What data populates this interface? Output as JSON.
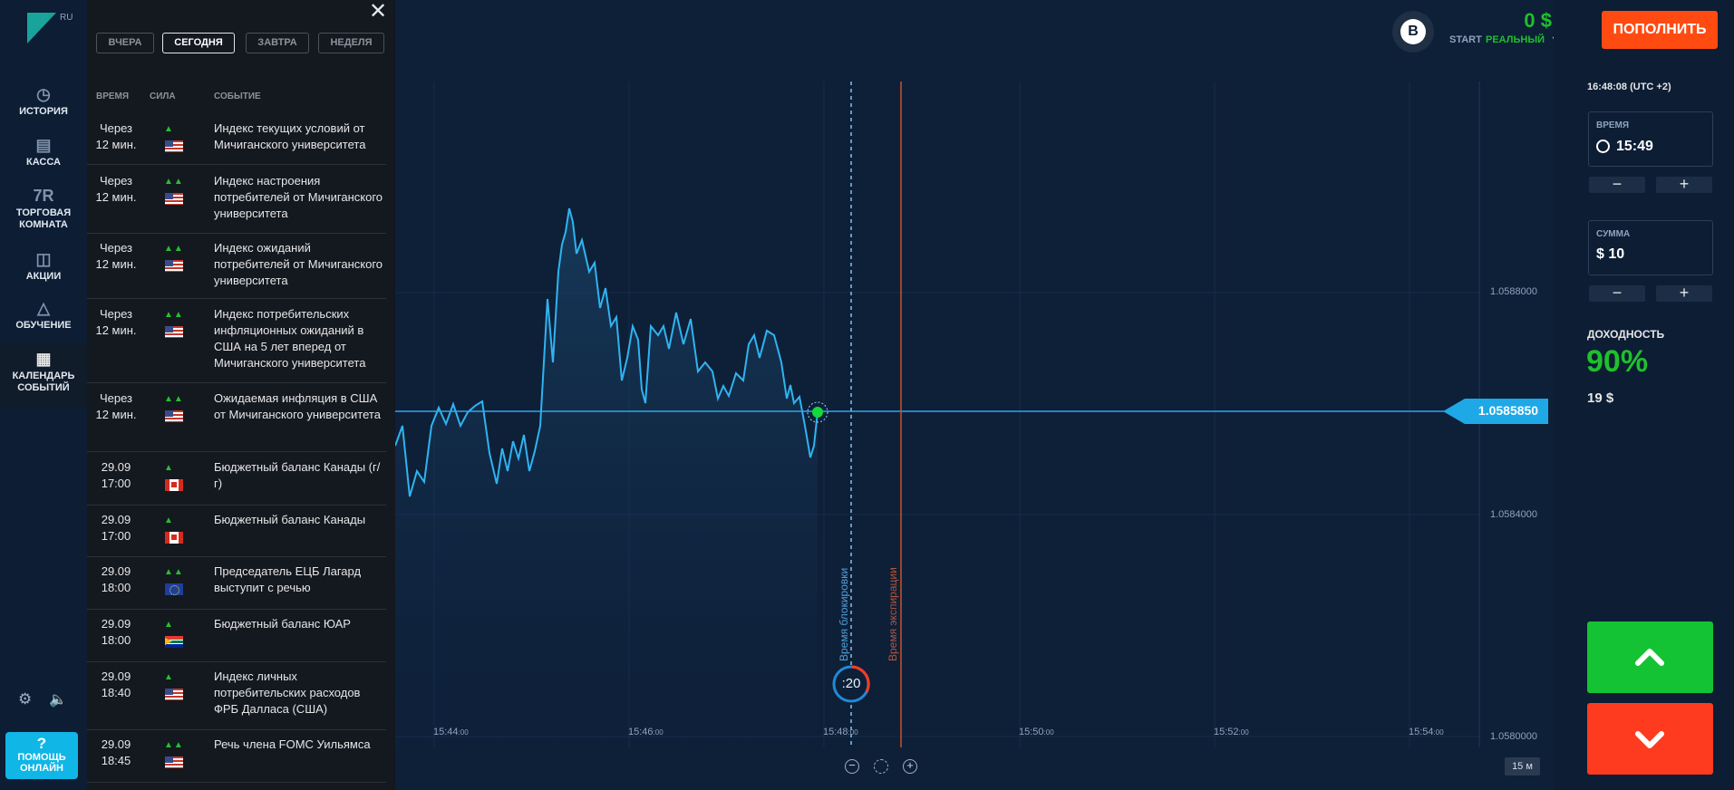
{
  "sidebar": {
    "logo_badge": "RU",
    "items": [
      {
        "label": "ИСТОРИЯ",
        "icon": "clock-history-icon"
      },
      {
        "label": "КАССА",
        "icon": "wallet-icon"
      },
      {
        "label": "ТОРГОВАЯ КОМНАТА",
        "icon": "trading-room-icon",
        "icon_text": "7R"
      },
      {
        "label": "АКЦИИ",
        "icon": "gift-icon"
      },
      {
        "label": "ОБУЧЕНИЕ",
        "icon": "graduation-cap-icon"
      },
      {
        "label": "КАЛЕНДАРЬ СОБЫТИЙ",
        "icon": "calendar-icon"
      }
    ],
    "settings_icon": "gear-icon",
    "sound_icon": "speaker-icon",
    "help": {
      "q": "?",
      "label": "ПОМОЩЬ ОНЛАЙН"
    }
  },
  "calendar": {
    "tabs": [
      "ВЧЕРА",
      "СЕГОДНЯ",
      "ЗАВТРА",
      "НЕДЕЛЯ"
    ],
    "selected_tab": "СЕГОДНЯ",
    "columns": [
      "ВРЕМЯ",
      "СИЛА",
      "СОБЫТИЕ"
    ],
    "events": [
      {
        "time": "Через 12 мин.",
        "strength": 1,
        "flag": "us",
        "name": "Индекс текущих условий от Мичиганского университета"
      },
      {
        "time": "Через 12 мин.",
        "strength": 2,
        "flag": "us",
        "name": "Индекс настроения потребителей от Мичиганского университета"
      },
      {
        "time": "Через 12 мин.",
        "strength": 2,
        "flag": "us",
        "name": "Индекс ожиданий потребителей от Мичиганского университета"
      },
      {
        "time": "Через 12 мин.",
        "strength": 2,
        "flag": "us",
        "name": "Индекс потребительских инфляционных ожиданий в США на 5 лет вперед от Мичиганского университета"
      },
      {
        "time": "Через 12 мин.",
        "strength": 2,
        "flag": "us",
        "name": "Ожидаемая инфляция в США от Мичиганского университета"
      },
      {
        "time": "29.09 17:00",
        "strength": 1,
        "flag": "ca",
        "name": "Бюджетный баланс Канады (г/г)"
      },
      {
        "time": "29.09 17:00",
        "strength": 1,
        "flag": "ca",
        "name": "Бюджетный баланс Канады"
      },
      {
        "time": "29.09 18:00",
        "strength": 2,
        "flag": "eu",
        "name": "Председатель ЕЦБ Лагард выступит с речью"
      },
      {
        "time": "29.09 18:00",
        "strength": 1,
        "flag": "za",
        "name": "Бюджетный баланс ЮАР"
      },
      {
        "time": "29.09 18:40",
        "strength": 1,
        "flag": "us",
        "name": "Индекс личных потребительских расходов ФРБ Далласа (США)"
      },
      {
        "time": "29.09 18:45",
        "strength": 2,
        "flag": "us",
        "name": "Речь члена FOMC Уильямса"
      }
    ]
  },
  "header": {
    "account_avatar_letter": "B",
    "balance": "0 $",
    "account_prefix": "START",
    "account_type": "РЕАЛЬНЫЙ",
    "deposit_label": "ПОПОЛНИТЬ"
  },
  "chart": {
    "current_price": "1.0585850",
    "price_levels": [
      "1.0588000",
      "1.0584000",
      "1.0580000"
    ],
    "time_labels": [
      {
        "main": "15:44",
        "sec": ":00"
      },
      {
        "main": "15:46",
        "sec": ":00"
      },
      {
        "main": "15:48",
        "sec": ":00"
      },
      {
        "main": "15:50",
        "sec": ":00"
      },
      {
        "main": "15:52",
        "sec": ":00"
      },
      {
        "main": "15:54",
        "sec": ":00"
      }
    ],
    "block_time_label": "Время блокировки",
    "expiry_time_label": "Время экспирации",
    "countdown": ":20",
    "timeframe": "15 м",
    "zoom_out_icon": "zoom-out-icon",
    "reset_zoom_icon": "crosshair-reset-icon",
    "zoom_in_icon": "zoom-in-icon"
  },
  "trade_panel": {
    "clock": "16:48:08 (UTC +2)",
    "time_label": "ВРЕМЯ",
    "time_value": "15:49",
    "amount_label": "СУММА",
    "amount_value": "$ 10",
    "minus": "−",
    "plus": "+",
    "payout_label": "ДОХОДНОСТЬ",
    "payout_percent": "90%",
    "payout_amount": "19 $",
    "up_icon": "chevron-up-icon",
    "down_icon": "chevron-down-icon"
  },
  "colors": {
    "accent": "#1fa8e6",
    "up": "#13c333",
    "down": "#ff3b1f",
    "deposit": "#ff4b12",
    "balance": "#1fc02c"
  }
}
